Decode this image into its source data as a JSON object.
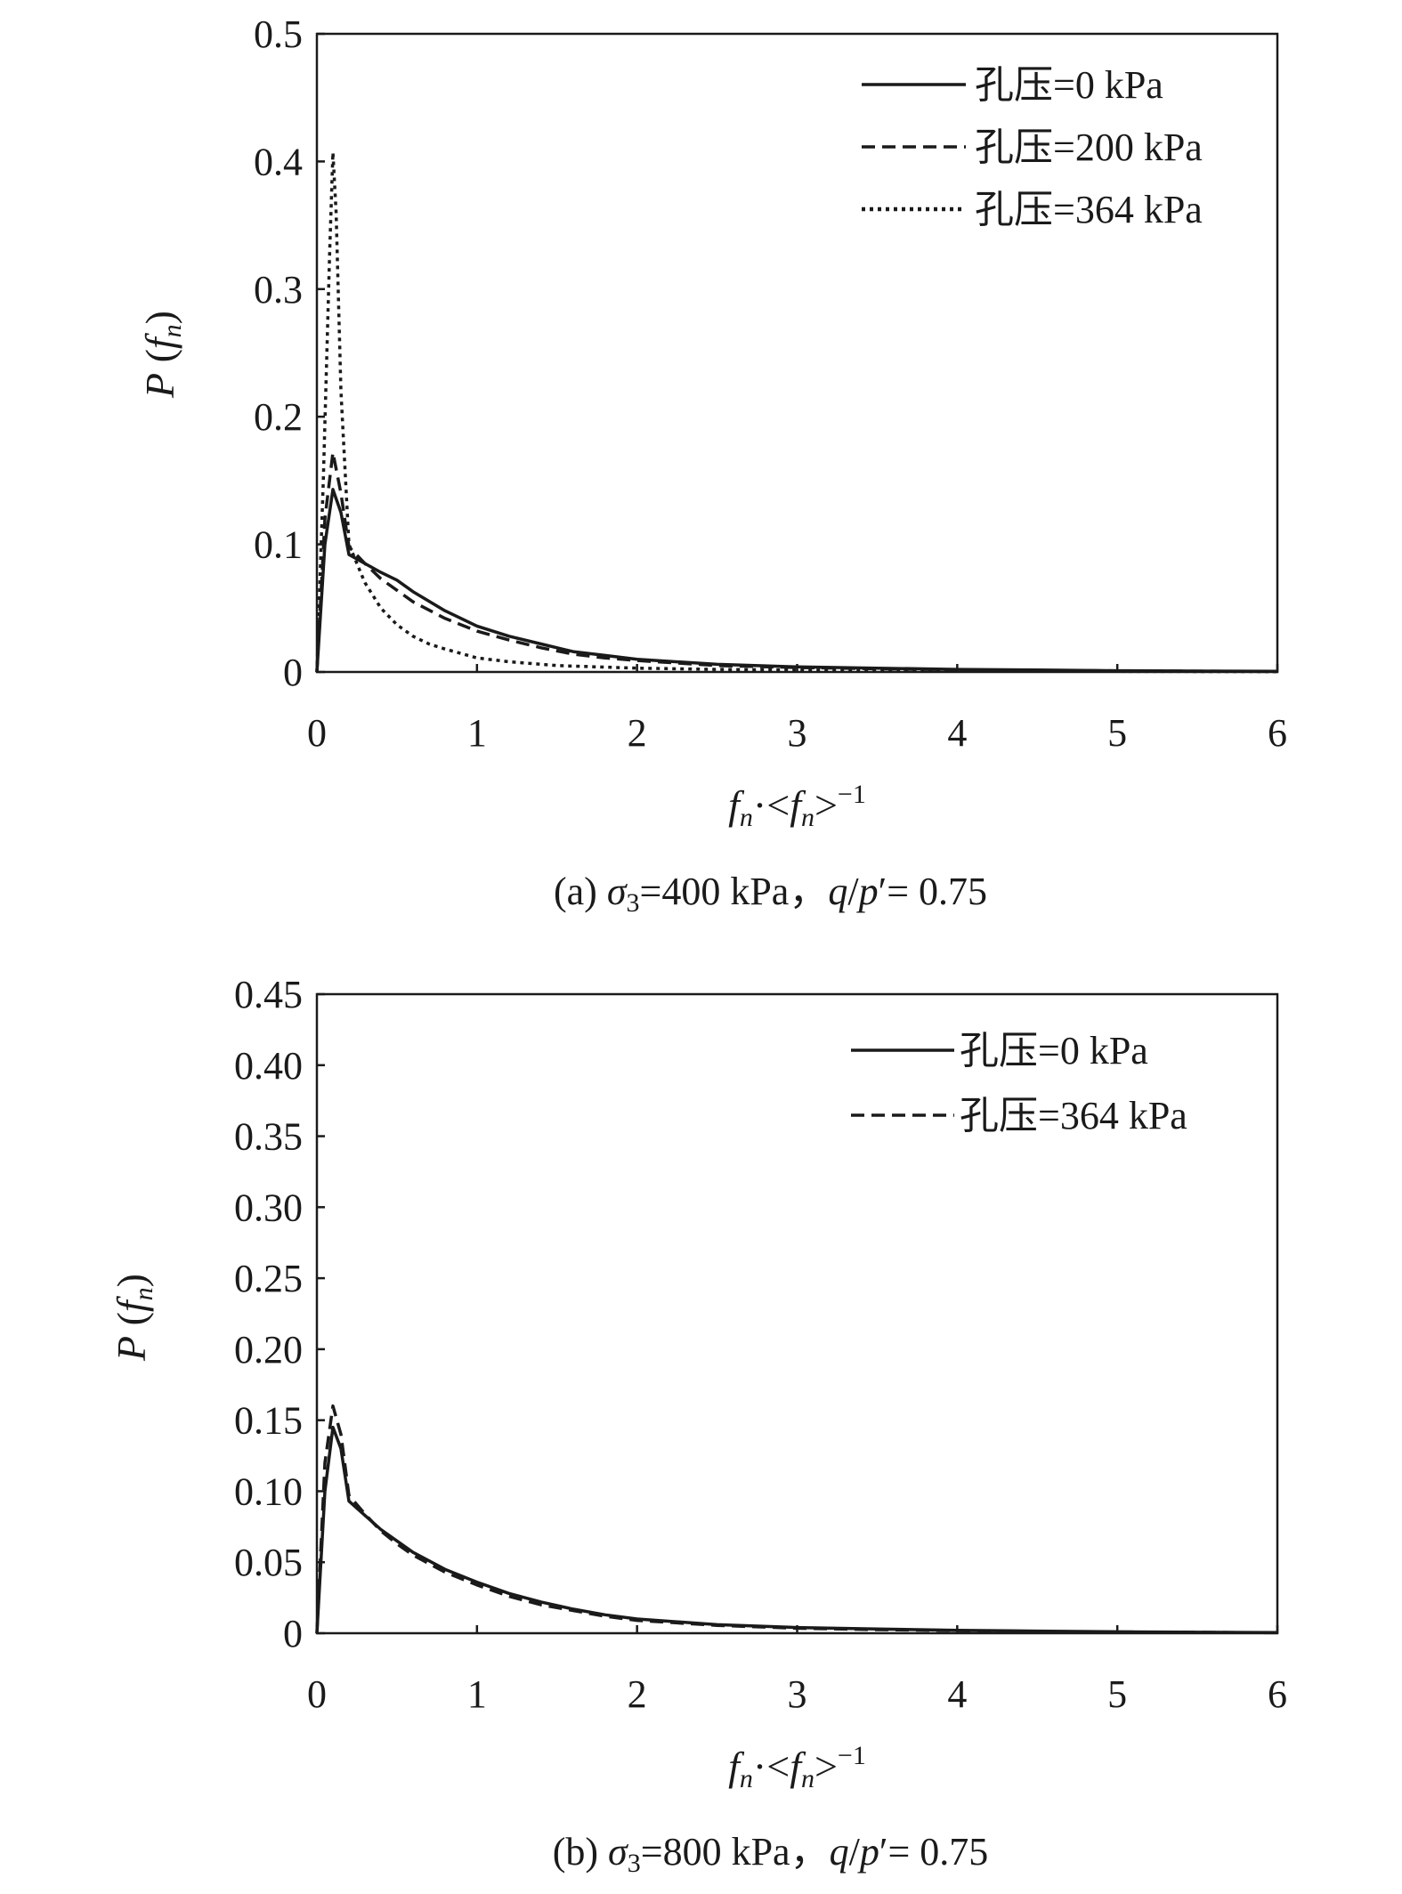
{
  "chart_data": [
    {
      "type": "line",
      "panel": "a",
      "caption": {
        "prefix": "(a) ",
        "sigma": "σ",
        "sigma_sub": "3",
        "mid": "=400 kPa，",
        "q": "q",
        "slash": "/",
        "p": "p",
        "tail": "′= 0.75"
      },
      "ylabel": {
        "p": "P",
        "open": " (",
        "f": "f",
        "sub": "n",
        "close": ")"
      },
      "xlabel": {
        "f1": "f",
        "sub1": "n",
        "mid": "·<",
        "f2": "f",
        "sub2": "n",
        "close": ">",
        "sup": "−1"
      },
      "xlim": [
        0,
        6
      ],
      "ylim": [
        0,
        0.5
      ],
      "x_ticks": [
        "0",
        "1",
        "2",
        "3",
        "4",
        "5",
        "6"
      ],
      "y_ticks": [
        "0",
        "0.1",
        "0.2",
        "0.3",
        "0.4",
        "0.5"
      ],
      "grid": false,
      "legend_position": "top-right",
      "series": [
        {
          "name": "孔压=0 kPa",
          "style": "solid",
          "x": [
            0,
            0.05,
            0.1,
            0.15,
            0.2,
            0.3,
            0.4,
            0.5,
            0.6,
            0.8,
            1.0,
            1.2,
            1.4,
            1.6,
            1.8,
            2.0,
            2.5,
            3.0,
            3.5,
            4.0,
            4.5,
            5.0,
            5.5,
            6.0
          ],
          "y": [
            0,
            0.1,
            0.143,
            0.125,
            0.092,
            0.085,
            0.078,
            0.072,
            0.063,
            0.048,
            0.036,
            0.028,
            0.022,
            0.016,
            0.013,
            0.01,
            0.006,
            0.004,
            0.003,
            0.002,
            0.0015,
            0.001,
            0.0007,
            0.0005
          ]
        },
        {
          "name": "孔压=200 kPa",
          "style": "dashed",
          "x": [
            0,
            0.05,
            0.1,
            0.15,
            0.2,
            0.3,
            0.4,
            0.5,
            0.6,
            0.8,
            1.0,
            1.2,
            1.4,
            1.6,
            1.8,
            2.0,
            2.5,
            3.0,
            3.5,
            4.0,
            4.5,
            5.0,
            5.5,
            6.0
          ],
          "y": [
            0,
            0.12,
            0.172,
            0.14,
            0.098,
            0.085,
            0.073,
            0.064,
            0.055,
            0.042,
            0.032,
            0.025,
            0.019,
            0.014,
            0.011,
            0.009,
            0.005,
            0.0035,
            0.0025,
            0.0018,
            0.0012,
            0.0009,
            0.0006,
            0.0004
          ]
        },
        {
          "name": "孔压=364 kPa",
          "style": "dotted",
          "x": [
            0,
            0.04,
            0.08,
            0.1,
            0.12,
            0.15,
            0.2,
            0.3,
            0.4,
            0.5,
            0.6,
            0.7,
            0.8,
            1.0,
            1.2,
            1.5,
            2.0,
            2.5,
            3.0,
            3.5,
            4.0,
            5.0,
            6.0
          ],
          "y": [
            0,
            0.15,
            0.33,
            0.407,
            0.36,
            0.22,
            0.1,
            0.07,
            0.05,
            0.037,
            0.028,
            0.022,
            0.018,
            0.011,
            0.008,
            0.005,
            0.003,
            0.002,
            0.0015,
            0.001,
            0.0008,
            0.0005,
            0.0003
          ]
        }
      ]
    },
    {
      "type": "line",
      "panel": "b",
      "caption": {
        "prefix": "(b) ",
        "sigma": "σ",
        "sigma_sub": "3",
        "mid": "=800 kPa，",
        "q": "q",
        "slash": "/",
        "p": "p",
        "tail": "′= 0.75"
      },
      "ylabel": {
        "p": "P",
        "open": " (",
        "f": "f",
        "sub": "n",
        "close": ")"
      },
      "xlabel": {
        "f1": "f",
        "sub1": "n",
        "mid": "·<",
        "f2": "f",
        "sub2": "n",
        "close": ">",
        "sup": "−1"
      },
      "xlim": [
        0,
        6
      ],
      "ylim": [
        0,
        0.45
      ],
      "x_ticks": [
        "0",
        "1",
        "2",
        "3",
        "4",
        "5",
        "6"
      ],
      "y_ticks": [
        "0",
        "0.05",
        "0.10",
        "0.15",
        "0.20",
        "0.25",
        "0.30",
        "0.35",
        "0.40",
        "0.45"
      ],
      "grid": false,
      "legend_position": "top-right",
      "series": [
        {
          "name": "孔压=0 kPa",
          "style": "solid",
          "x": [
            0,
            0.05,
            0.1,
            0.15,
            0.2,
            0.3,
            0.4,
            0.5,
            0.6,
            0.8,
            1.0,
            1.2,
            1.4,
            1.6,
            1.8,
            2.0,
            2.5,
            3.0,
            3.5,
            4.0,
            4.5,
            5.0,
            5.5,
            6.0
          ],
          "y": [
            0,
            0.1,
            0.145,
            0.13,
            0.093,
            0.083,
            0.073,
            0.065,
            0.057,
            0.045,
            0.036,
            0.028,
            0.022,
            0.017,
            0.013,
            0.01,
            0.006,
            0.004,
            0.003,
            0.002,
            0.0015,
            0.001,
            0.0007,
            0.0005
          ]
        },
        {
          "name": "孔压=364 kPa",
          "style": "dashed",
          "x": [
            0,
            0.05,
            0.1,
            0.15,
            0.2,
            0.3,
            0.4,
            0.5,
            0.6,
            0.8,
            1.0,
            1.2,
            1.4,
            1.6,
            1.8,
            2.0,
            2.5,
            3.0,
            3.5,
            4.0,
            4.5,
            5.0,
            5.5,
            6.0
          ],
          "y": [
            0,
            0.12,
            0.16,
            0.14,
            0.097,
            0.084,
            0.072,
            0.063,
            0.055,
            0.043,
            0.034,
            0.026,
            0.02,
            0.016,
            0.012,
            0.009,
            0.0055,
            0.0035,
            0.0025,
            0.0018,
            0.0012,
            0.0009,
            0.0006,
            0.0004
          ]
        }
      ]
    }
  ]
}
